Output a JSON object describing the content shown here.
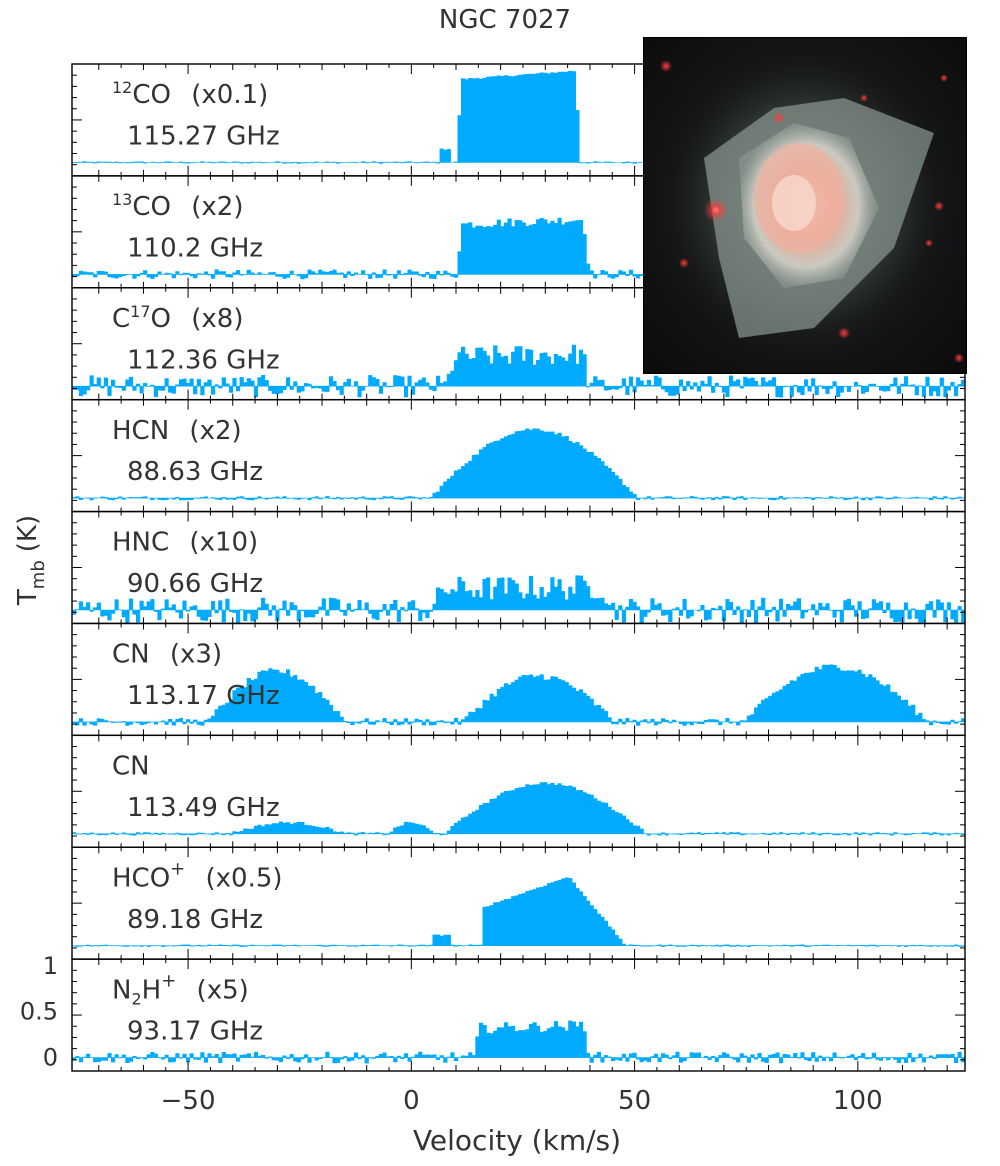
{
  "title": "NGC 7027",
  "ylabel_main": "T",
  "ylabel_sub": "mb",
  "ylabel_unit": "(K)",
  "xlabel": "Velocity (km/s)",
  "colors": {
    "fill": "#00aaff",
    "axis": "#000000",
    "text": "#222222"
  },
  "inset": {
    "description_icon": "nebula-image"
  },
  "chart_data": {
    "type": "histogram-stack",
    "xlim": [
      -76,
      124
    ],
    "xticks": [
      -50,
      0,
      50,
      100
    ],
    "bottom_yticks": [
      0,
      0.5,
      1
    ],
    "panels": [
      {
        "id": "co12",
        "sup_pre": "12",
        "name": "CO",
        "scale": "(x0.1)",
        "freq": "115.27 GHz",
        "noise": 0.01,
        "components": [
          [
            10,
            38,
            1.0,
            "flat"
          ],
          [
            6,
            9,
            0.15,
            "flat"
          ]
        ]
      },
      {
        "id": "co13",
        "sup_pre": "13",
        "name": "CO",
        "scale": "(x2)",
        "freq": "110.2 GHz",
        "noise": 0.05,
        "components": [
          [
            10,
            40,
            0.6,
            "flat"
          ]
        ]
      },
      {
        "id": "c17o",
        "name": "C",
        "sup_mid": "17",
        "name2": "O",
        "scale": "(x8)",
        "freq": "112.36 GHz",
        "noise": 0.12,
        "components": [
          [
            8,
            40,
            0.35,
            "flat"
          ]
        ]
      },
      {
        "id": "hcn",
        "name": "HCN",
        "scale": "(x2)",
        "freq": "88.63 GHz",
        "noise": 0.02,
        "components": [
          [
            5,
            50,
            0.75,
            "dome"
          ]
        ]
      },
      {
        "id": "hnc",
        "name": "HNC",
        "scale": "(x10)",
        "freq": "90.66 GHz",
        "noise": 0.14,
        "components": [
          [
            5,
            45,
            0.25,
            "flat"
          ]
        ]
      },
      {
        "id": "cn1",
        "name": "CN",
        "scale": "(x3)",
        "freq": "113.17 GHz",
        "noise": 0.04,
        "components": [
          [
            -45,
            -15,
            0.55,
            "dome"
          ],
          [
            12,
            45,
            0.5,
            "dome"
          ],
          [
            75,
            115,
            0.6,
            "dome"
          ]
        ]
      },
      {
        "id": "cn2",
        "name": "CN",
        "scale": "",
        "freq": "113.49 GHz",
        "noise": 0.015,
        "components": [
          [
            -40,
            -15,
            0.12,
            "dome"
          ],
          [
            -5,
            5,
            0.12,
            "dome"
          ],
          [
            8,
            52,
            0.55,
            "dome"
          ]
        ]
      },
      {
        "id": "hcop",
        "name": "HCO",
        "sup_post": "+",
        "scale": "(x0.5)",
        "freq": "89.18 GHz",
        "noise": 0.01,
        "components": [
          [
            16,
            48,
            0.75,
            "rise"
          ],
          [
            5,
            9,
            0.12,
            "flat"
          ]
        ]
      },
      {
        "id": "n2hp",
        "name": "N",
        "sub": "2",
        "name2": "H",
        "sup_post": "+",
        "scale": "(x5)",
        "freq": "93.17 GHz",
        "noise": 0.06,
        "components": [
          [
            14,
            40,
            0.35,
            "flat"
          ]
        ]
      }
    ]
  }
}
